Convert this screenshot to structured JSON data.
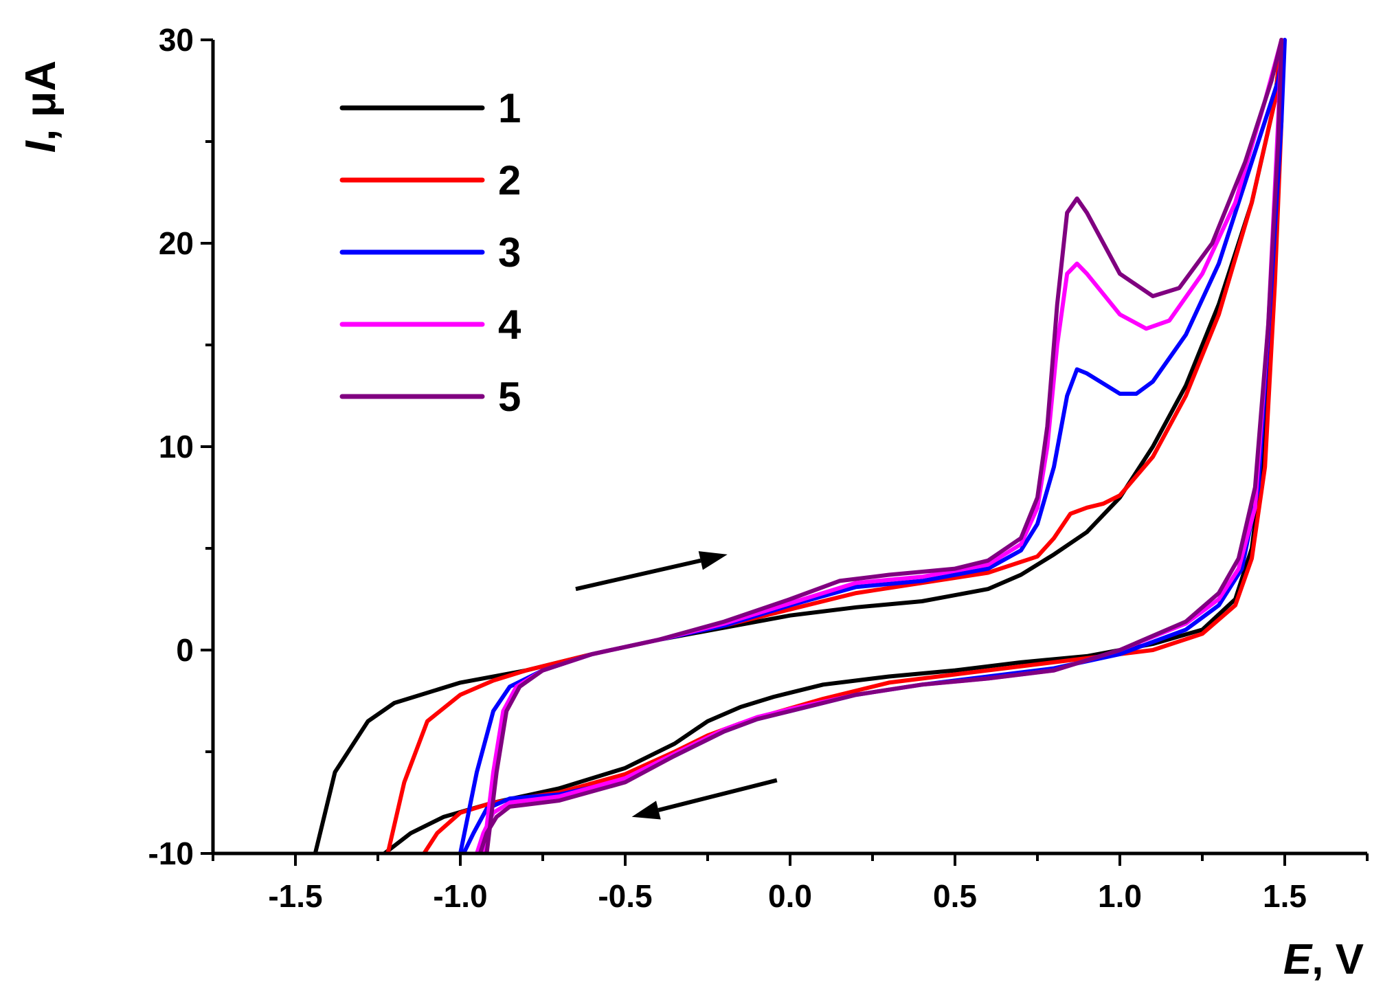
{
  "chart_data": {
    "type": "line",
    "title": "",
    "xlabel": {
      "symbol": "E",
      "unit": ", V"
    },
    "ylabel": {
      "symbol": "I",
      "unit": ", μA"
    },
    "xlim": [
      -1.75,
      1.75
    ],
    "ylim": [
      -10,
      30
    ],
    "xticks": [
      -1.5,
      -1.0,
      -0.5,
      0.0,
      0.5,
      1.0,
      1.5
    ],
    "xtick_labels": [
      "-1.5",
      "-1.0",
      "-0.5",
      "0.0",
      "0.5",
      "1.0",
      "1.5"
    ],
    "yticks": [
      -10,
      0,
      10,
      20,
      30
    ],
    "ytick_labels": [
      "-10",
      "0",
      "10",
      "20",
      "30"
    ],
    "grid": false,
    "legend_position": "top-left",
    "arrows": [
      {
        "direction": "forward (anodic) scan",
        "from": [
          -0.65,
          3.0
        ],
        "to": [
          -0.19,
          4.7
        ]
      },
      {
        "direction": "reverse (cathodic) scan",
        "from": [
          -0.04,
          -6.4
        ],
        "to": [
          -0.48,
          -8.2
        ]
      }
    ],
    "series": [
      {
        "name": "1",
        "color": "#000000",
        "points": [
          [
            -1.44,
            -10
          ],
          [
            -1.38,
            -6.0
          ],
          [
            -1.28,
            -3.5
          ],
          [
            -1.2,
            -2.6
          ],
          [
            -1.0,
            -1.6
          ],
          [
            -0.8,
            -1.0
          ],
          [
            -0.6,
            -0.2
          ],
          [
            -0.4,
            0.5
          ],
          [
            -0.2,
            1.1
          ],
          [
            0.0,
            1.7
          ],
          [
            0.2,
            2.1
          ],
          [
            0.4,
            2.4
          ],
          [
            0.6,
            3.0
          ],
          [
            0.7,
            3.7
          ],
          [
            0.8,
            4.7
          ],
          [
            0.9,
            5.8
          ],
          [
            1.0,
            7.5
          ],
          [
            1.1,
            10.0
          ],
          [
            1.2,
            13.0
          ],
          [
            1.3,
            17.0
          ],
          [
            1.4,
            22.0
          ],
          [
            1.47,
            27.0
          ],
          [
            1.49,
            30.0
          ],
          [
            1.49,
            27.0
          ],
          [
            1.47,
            20.0
          ],
          [
            1.44,
            10.0
          ],
          [
            1.4,
            5.0
          ],
          [
            1.35,
            2.5
          ],
          [
            1.25,
            1.0
          ],
          [
            1.1,
            0.3
          ],
          [
            0.9,
            -0.3
          ],
          [
            0.7,
            -0.6
          ],
          [
            0.5,
            -1.0
          ],
          [
            0.3,
            -1.3
          ],
          [
            0.1,
            -1.7
          ],
          [
            -0.05,
            -2.3
          ],
          [
            -0.15,
            -2.8
          ],
          [
            -0.25,
            -3.5
          ],
          [
            -0.35,
            -4.6
          ],
          [
            -0.5,
            -5.8
          ],
          [
            -0.7,
            -6.8
          ],
          [
            -0.9,
            -7.5
          ],
          [
            -1.05,
            -8.2
          ],
          [
            -1.15,
            -9.0
          ],
          [
            -1.23,
            -10.0
          ]
        ]
      },
      {
        "name": "2",
        "color": "#ff0000",
        "points": [
          [
            -1.22,
            -10
          ],
          [
            -1.17,
            -6.5
          ],
          [
            -1.1,
            -3.5
          ],
          [
            -1.0,
            -2.2
          ],
          [
            -0.9,
            -1.5
          ],
          [
            -0.8,
            -1.0
          ],
          [
            -0.6,
            -0.2
          ],
          [
            -0.4,
            0.5
          ],
          [
            -0.2,
            1.2
          ],
          [
            0.0,
            2.0
          ],
          [
            0.2,
            2.8
          ],
          [
            0.4,
            3.3
          ],
          [
            0.6,
            3.8
          ],
          [
            0.75,
            4.6
          ],
          [
            0.8,
            5.5
          ],
          [
            0.85,
            6.7
          ],
          [
            0.9,
            7.0
          ],
          [
            0.95,
            7.2
          ],
          [
            1.0,
            7.6
          ],
          [
            1.1,
            9.5
          ],
          [
            1.2,
            12.5
          ],
          [
            1.3,
            16.5
          ],
          [
            1.4,
            22.0
          ],
          [
            1.47,
            27.0
          ],
          [
            1.49,
            30.0
          ],
          [
            1.49,
            26.0
          ],
          [
            1.47,
            18.0
          ],
          [
            1.44,
            9.0
          ],
          [
            1.4,
            4.5
          ],
          [
            1.35,
            2.2
          ],
          [
            1.25,
            0.8
          ],
          [
            1.1,
            0.0
          ],
          [
            0.9,
            -0.4
          ],
          [
            0.7,
            -0.8
          ],
          [
            0.5,
            -1.2
          ],
          [
            0.3,
            -1.6
          ],
          [
            0.1,
            -2.4
          ],
          [
            -0.05,
            -3.1
          ],
          [
            -0.15,
            -3.6
          ],
          [
            -0.25,
            -4.2
          ],
          [
            -0.35,
            -5.0
          ],
          [
            -0.5,
            -6.1
          ],
          [
            -0.7,
            -7.0
          ],
          [
            -0.9,
            -7.5
          ],
          [
            -1.0,
            -8.0
          ],
          [
            -1.07,
            -9.0
          ],
          [
            -1.11,
            -10.0
          ]
        ]
      },
      {
        "name": "3",
        "color": "#0000ff",
        "points": [
          [
            -1.0,
            -10
          ],
          [
            -0.95,
            -6.0
          ],
          [
            -0.9,
            -3.0
          ],
          [
            -0.85,
            -1.8
          ],
          [
            -0.75,
            -1.0
          ],
          [
            -0.6,
            -0.2
          ],
          [
            -0.4,
            0.5
          ],
          [
            -0.2,
            1.2
          ],
          [
            0.0,
            2.2
          ],
          [
            0.2,
            3.1
          ],
          [
            0.4,
            3.4
          ],
          [
            0.6,
            4.0
          ],
          [
            0.7,
            4.9
          ],
          [
            0.75,
            6.2
          ],
          [
            0.8,
            9.0
          ],
          [
            0.84,
            12.5
          ],
          [
            0.87,
            13.8
          ],
          [
            0.9,
            13.6
          ],
          [
            1.0,
            12.6
          ],
          [
            1.05,
            12.6
          ],
          [
            1.1,
            13.2
          ],
          [
            1.2,
            15.5
          ],
          [
            1.3,
            19.0
          ],
          [
            1.4,
            24.0
          ],
          [
            1.48,
            28.0
          ],
          [
            1.5,
            30.0
          ],
          [
            1.49,
            26.0
          ],
          [
            1.46,
            18.0
          ],
          [
            1.42,
            8.0
          ],
          [
            1.37,
            4.0
          ],
          [
            1.3,
            2.2
          ],
          [
            1.2,
            1.0
          ],
          [
            1.0,
            -0.2
          ],
          [
            0.8,
            -0.9
          ],
          [
            0.6,
            -1.3
          ],
          [
            0.4,
            -1.7
          ],
          [
            0.2,
            -2.2
          ],
          [
            0.0,
            -3.0
          ],
          [
            -0.1,
            -3.4
          ],
          [
            -0.2,
            -4.0
          ],
          [
            -0.35,
            -5.2
          ],
          [
            -0.5,
            -6.4
          ],
          [
            -0.7,
            -7.1
          ],
          [
            -0.85,
            -7.3
          ],
          [
            -0.92,
            -7.8
          ],
          [
            -0.96,
            -9.0
          ],
          [
            -0.99,
            -10.0
          ]
        ]
      },
      {
        "name": "4",
        "color": "#ff00ff",
        "points": [
          [
            -0.93,
            -10
          ],
          [
            -0.9,
            -6.0
          ],
          [
            -0.87,
            -3.0
          ],
          [
            -0.83,
            -1.8
          ],
          [
            -0.75,
            -1.0
          ],
          [
            -0.6,
            -0.2
          ],
          [
            -0.4,
            0.5
          ],
          [
            -0.2,
            1.3
          ],
          [
            0.0,
            2.3
          ],
          [
            0.2,
            3.3
          ],
          [
            0.4,
            3.6
          ],
          [
            0.6,
            4.2
          ],
          [
            0.7,
            5.2
          ],
          [
            0.75,
            7.0
          ],
          [
            0.78,
            10.0
          ],
          [
            0.81,
            15.0
          ],
          [
            0.84,
            18.5
          ],
          [
            0.87,
            19.0
          ],
          [
            0.9,
            18.5
          ],
          [
            1.0,
            16.5
          ],
          [
            1.08,
            15.8
          ],
          [
            1.15,
            16.2
          ],
          [
            1.25,
            18.5
          ],
          [
            1.35,
            22.0
          ],
          [
            1.44,
            27.0
          ],
          [
            1.49,
            30.0
          ],
          [
            1.48,
            26.0
          ],
          [
            1.45,
            16.0
          ],
          [
            1.41,
            7.0
          ],
          [
            1.36,
            4.0
          ],
          [
            1.3,
            2.5
          ],
          [
            1.2,
            1.3
          ],
          [
            1.0,
            0.0
          ],
          [
            0.8,
            -1.0
          ],
          [
            0.6,
            -1.4
          ],
          [
            0.4,
            -1.7
          ],
          [
            0.2,
            -2.2
          ],
          [
            0.0,
            -2.9
          ],
          [
            -0.1,
            -3.3
          ],
          [
            -0.2,
            -3.9
          ],
          [
            -0.35,
            -5.1
          ],
          [
            -0.5,
            -6.3
          ],
          [
            -0.7,
            -7.2
          ],
          [
            -0.85,
            -7.5
          ],
          [
            -0.9,
            -8.0
          ],
          [
            -0.93,
            -9.0
          ],
          [
            -0.95,
            -10.0
          ]
        ]
      },
      {
        "name": "5",
        "color": "#800080",
        "points": [
          [
            -0.92,
            -10
          ],
          [
            -0.89,
            -6.0
          ],
          [
            -0.86,
            -3.0
          ],
          [
            -0.82,
            -1.8
          ],
          [
            -0.75,
            -1.0
          ],
          [
            -0.6,
            -0.2
          ],
          [
            -0.4,
            0.5
          ],
          [
            -0.2,
            1.4
          ],
          [
            0.0,
            2.5
          ],
          [
            0.15,
            3.4
          ],
          [
            0.3,
            3.7
          ],
          [
            0.5,
            4.0
          ],
          [
            0.6,
            4.4
          ],
          [
            0.7,
            5.5
          ],
          [
            0.75,
            7.5
          ],
          [
            0.78,
            11.0
          ],
          [
            0.81,
            17.0
          ],
          [
            0.84,
            21.5
          ],
          [
            0.87,
            22.2
          ],
          [
            0.9,
            21.5
          ],
          [
            1.0,
            18.5
          ],
          [
            1.1,
            17.4
          ],
          [
            1.18,
            17.8
          ],
          [
            1.28,
            20.0
          ],
          [
            1.38,
            24.0
          ],
          [
            1.46,
            28.0
          ],
          [
            1.49,
            30.0
          ],
          [
            1.48,
            25.0
          ],
          [
            1.45,
            16.0
          ],
          [
            1.41,
            8.0
          ],
          [
            1.36,
            4.5
          ],
          [
            1.3,
            2.8
          ],
          [
            1.2,
            1.4
          ],
          [
            1.0,
            0.0
          ],
          [
            0.8,
            -1.0
          ],
          [
            0.6,
            -1.4
          ],
          [
            0.4,
            -1.7
          ],
          [
            0.2,
            -2.2
          ],
          [
            0.0,
            -3.0
          ],
          [
            -0.1,
            -3.4
          ],
          [
            -0.2,
            -4.0
          ],
          [
            -0.35,
            -5.2
          ],
          [
            -0.5,
            -6.5
          ],
          [
            -0.7,
            -7.4
          ],
          [
            -0.85,
            -7.7
          ],
          [
            -0.89,
            -8.2
          ],
          [
            -0.92,
            -9.0
          ],
          [
            -0.94,
            -10.0
          ]
        ]
      }
    ]
  }
}
